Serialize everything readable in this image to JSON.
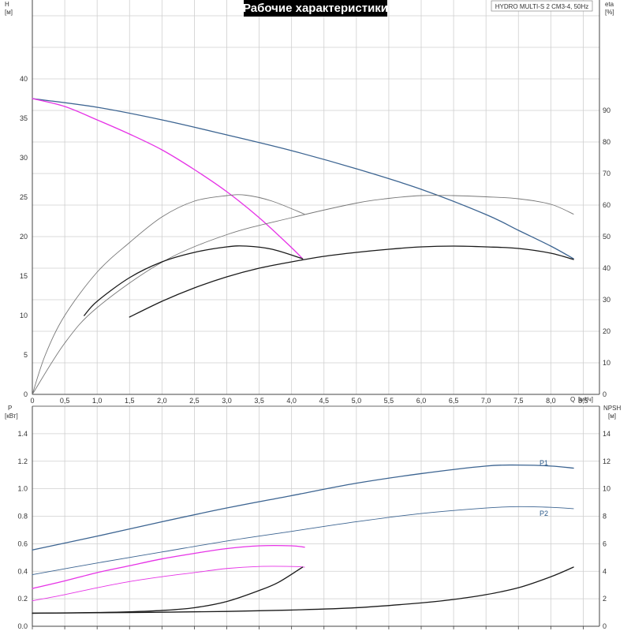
{
  "title": "Рабочие характеристики",
  "model": "HYDRO MULTI-S 2 CM3-4, 50Hz",
  "top": {
    "x_axis": {
      "label": "Q",
      "unit": "[м³/ч]",
      "min": 0,
      "max": 9.0,
      "major": 0.5,
      "ticks": [
        "0",
        "0,5",
        "1,0",
        "1,5",
        "2,0",
        "2,5",
        "3,0",
        "3,5",
        "4,0",
        "4,5",
        "5,0",
        "5,5",
        "6,0",
        "6,5",
        "7,0",
        "7,5",
        "8,0",
        "8,5"
      ]
    },
    "y_left": {
      "label": "H",
      "unit": "[м]",
      "min": 0,
      "max": 40,
      "ticks": [
        "0",
        "5",
        "10",
        "15",
        "20",
        "25",
        "30",
        "35",
        "40"
      ]
    },
    "y_right": {
      "label": "eta",
      "unit": "[%]",
      "min": 0,
      "max": 100,
      "ticks": [
        "0",
        "10",
        "20",
        "30",
        "40",
        "50",
        "60",
        "70",
        "80",
        "90"
      ]
    }
  },
  "bottom": {
    "y_left": {
      "label": "P",
      "unit": "[кВт]",
      "min": 0,
      "max": 1.6,
      "ticks": [
        "0.0",
        "0.2",
        "0.4",
        "0.6",
        "0.8",
        "1.0",
        "1.2",
        "1.4"
      ]
    },
    "y_right": {
      "label": "NPSH",
      "unit": "[м]",
      "min": 0,
      "max": 16,
      "ticks": [
        "0",
        "2",
        "4",
        "6",
        "8",
        "10",
        "12",
        "14"
      ]
    }
  },
  "colors": {
    "blue": "#3c6491",
    "magenta": "#e633e6",
    "black": "#1a1a1a",
    "gray": "#777777",
    "grid": "#cfcfcf",
    "title_bg": "#000000"
  },
  "chart_data": [
    {
      "type": "line",
      "panel": "top",
      "xlabel": "Q [м³/ч]",
      "ylabel": "H [м]",
      "y2label": "eta [%]",
      "xlim": [
        0,
        9.0
      ],
      "ylim": [
        0,
        40
      ],
      "y2lim": [
        0,
        100
      ],
      "grid": true,
      "series": [
        {
          "axis": "left",
          "color": "blue",
          "width": 1.3,
          "x": [
            0,
            1,
            2,
            3,
            4,
            5,
            6,
            7,
            7.5,
            8,
            8.35
          ],
          "y": [
            37.5,
            36.4,
            34.8,
            32.9,
            30.9,
            28.6,
            26.0,
            22.8,
            20.8,
            18.8,
            17.2
          ]
        },
        {
          "axis": "left",
          "color": "magenta",
          "width": 1.3,
          "x": [
            0,
            0.5,
            1,
            1.5,
            2,
            2.5,
            3,
            3.5,
            4,
            4.17
          ],
          "y": [
            37.5,
            36.5,
            34.8,
            33.0,
            31.0,
            28.5,
            25.7,
            22.4,
            18.6,
            17.2
          ]
        },
        {
          "axis": "right",
          "color": "gray",
          "width": 0.9,
          "x": [
            0,
            0.2,
            0.5,
            1,
            1.5,
            2,
            2.5,
            3,
            3.3,
            3.7,
            4.2
          ],
          "y": [
            0,
            10,
            20,
            31,
            38.5,
            45,
            49,
            50.4,
            50.5,
            49,
            45.7
          ]
        },
        {
          "axis": "right",
          "color": "gray",
          "width": 0.9,
          "x": [
            0,
            0.5,
            1,
            2,
            3,
            4,
            5,
            5.5,
            6,
            6.5,
            7,
            7.5,
            8,
            8.35
          ],
          "y": [
            0,
            13,
            22,
            33.5,
            40.5,
            44.8,
            48.5,
            49.7,
            50.4,
            50.4,
            50.1,
            49.6,
            48.2,
            45.7
          ]
        },
        {
          "axis": "left",
          "color": "black",
          "width": 1.3,
          "x": [
            0.8,
            1,
            1.5,
            2,
            2.5,
            3,
            3.3,
            3.7,
            4.17
          ],
          "y": [
            10,
            11.8,
            14.8,
            16.8,
            18,
            18.7,
            18.8,
            18.4,
            17.2
          ]
        },
        {
          "axis": "left",
          "color": "black",
          "width": 1.3,
          "x": [
            1.5,
            2,
            2.5,
            3,
            3.5,
            4,
            4.5,
            5,
            5.5,
            6,
            6.5,
            7,
            7.5,
            8,
            8.35
          ],
          "y": [
            9.8,
            11.8,
            13.5,
            14.9,
            16.0,
            16.8,
            17.5,
            18.0,
            18.4,
            18.7,
            18.8,
            18.7,
            18.5,
            17.9,
            17.1
          ]
        }
      ]
    },
    {
      "type": "line",
      "panel": "bottom",
      "xlabel": "Q [м³/ч]",
      "ylabel": "P [кВт]",
      "y2label": "NPSH [м]",
      "xlim": [
        0,
        9.0
      ],
      "ylim": [
        0,
        1.6
      ],
      "y2lim": [
        0,
        16
      ],
      "grid": true,
      "series": [
        {
          "name": "P1",
          "axis": "left",
          "color": "blue",
          "width": 1.3,
          "x": [
            0,
            1,
            2,
            3,
            4,
            5,
            6,
            7,
            7.5,
            8,
            8.35
          ],
          "y": [
            0.555,
            0.655,
            0.76,
            0.86,
            0.95,
            1.04,
            1.11,
            1.165,
            1.172,
            1.165,
            1.15
          ]
        },
        {
          "name": "P2",
          "axis": "left",
          "color": "blue",
          "width": 0.9,
          "x": [
            0,
            1,
            2,
            3,
            4,
            5,
            6,
            7,
            7.5,
            8,
            8.35
          ],
          "y": [
            0.375,
            0.46,
            0.54,
            0.62,
            0.69,
            0.76,
            0.82,
            0.86,
            0.87,
            0.865,
            0.855
          ]
        },
        {
          "axis": "left",
          "color": "magenta",
          "width": 1.3,
          "x": [
            0,
            0.5,
            1,
            1.5,
            2,
            2.5,
            3,
            3.5,
            4,
            4.2
          ],
          "y": [
            0.275,
            0.33,
            0.39,
            0.44,
            0.49,
            0.53,
            0.565,
            0.585,
            0.585,
            0.575
          ]
        },
        {
          "axis": "left",
          "color": "magenta",
          "width": 0.9,
          "x": [
            0,
            0.5,
            1,
            1.5,
            2,
            2.5,
            3,
            3.5,
            4,
            4.2
          ],
          "y": [
            0.185,
            0.23,
            0.28,
            0.325,
            0.36,
            0.39,
            0.42,
            0.435,
            0.435,
            0.43
          ]
        },
        {
          "axis": "right",
          "color": "black",
          "width": 1.3,
          "x": [
            0,
            1,
            1.5,
            2,
            2.5,
            3,
            3.5,
            3.8,
            4.17
          ],
          "y": [
            0.95,
            1.0,
            1.05,
            1.15,
            1.35,
            1.8,
            2.6,
            3.2,
            4.3
          ]
        },
        {
          "axis": "right",
          "color": "black",
          "width": 1.3,
          "x": [
            0,
            1,
            2,
            3,
            4,
            5,
            6,
            6.5,
            7,
            7.5,
            8,
            8.35
          ],
          "y": [
            0.95,
            0.98,
            1.02,
            1.08,
            1.18,
            1.35,
            1.7,
            1.95,
            2.3,
            2.8,
            3.6,
            4.3
          ]
        }
      ]
    }
  ]
}
